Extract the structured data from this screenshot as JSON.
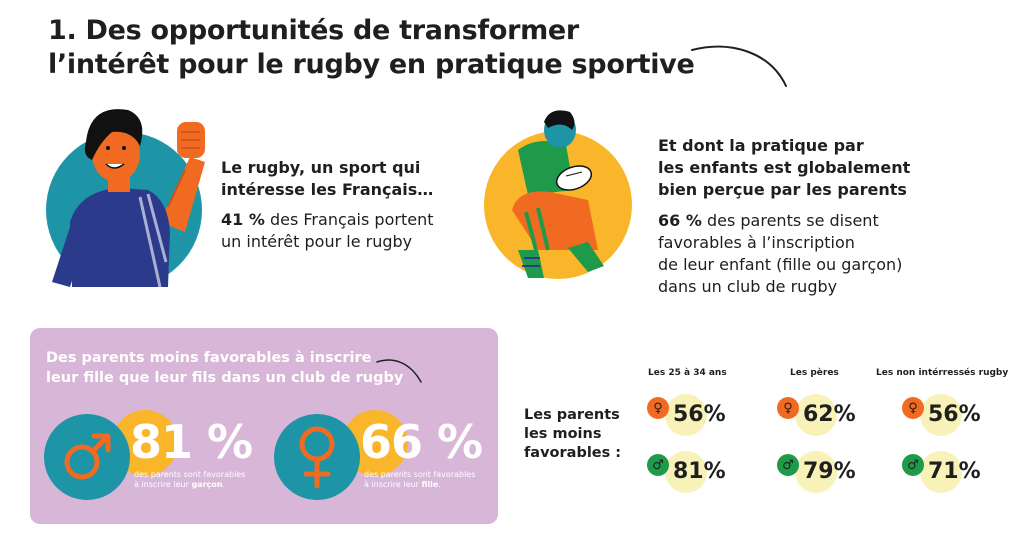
{
  "title": {
    "line1": "1. Des opportunités de transformer",
    "line2": "l’intérêt pour le rugby en pratique sportive"
  },
  "left_block": {
    "heading_line1": "Le rugby, un sport qui",
    "heading_line2": "intéresse les Français…",
    "stat_value": "41 %",
    "text_line1_rest": "des Français portent",
    "text_line2": "un intérêt pour le rugby"
  },
  "right_block": {
    "heading_line1": "Et dont la pratique par",
    "heading_line2": "les enfants est globalement",
    "heading_line3": "bien perçue par les parents",
    "stat_value": "66 %",
    "text_line1_rest": "des parents se disent",
    "text_line2": "favorables à l’inscription",
    "text_line3": "de leur enfant (fille ou garçon)",
    "text_line4": "dans un club de rugby"
  },
  "panel": {
    "heading_line1": "Des parents moins favorables à inscrire",
    "heading_line2": "leur fille que leur fils dans un club de rugby",
    "boy": {
      "percent": "81 %",
      "caption_line1": "des parents sont favorables",
      "caption_line2_prefix": "à inscrire leur ",
      "caption_line2_bold": "garçon",
      "caption_line2_suffix": "."
    },
    "girl": {
      "percent": "66 %",
      "caption_line1": "des parents sont favorables",
      "caption_line2_prefix": "à inscrire leur ",
      "caption_line2_bold": "fille",
      "caption_line2_suffix": "."
    }
  },
  "comparison": {
    "label_line1": "Les parents",
    "label_line2": "les moins",
    "label_line3": "favorables :",
    "columns": [
      {
        "header": "Les 25 à 34 ans",
        "girl": "56%",
        "boy": "81%"
      },
      {
        "header": "Les pères",
        "girl": "62%",
        "boy": "79%"
      },
      {
        "header": "Les non intérressés rugby",
        "girl": "56%",
        "boy": "71%"
      }
    ],
    "female_symbol": "♀",
    "male_symbol": "♂"
  },
  "icons": {
    "male": "male-symbol-icon",
    "female": "female-symbol-icon"
  },
  "colors": {
    "teal": "#1d95a6",
    "orange": "#f16a22",
    "yellow": "#f9b62b",
    "green": "#1e9a4a",
    "purple_panel": "#d8b6d8",
    "halo": "#f8f1b8",
    "navy": "#2c3a8c"
  }
}
